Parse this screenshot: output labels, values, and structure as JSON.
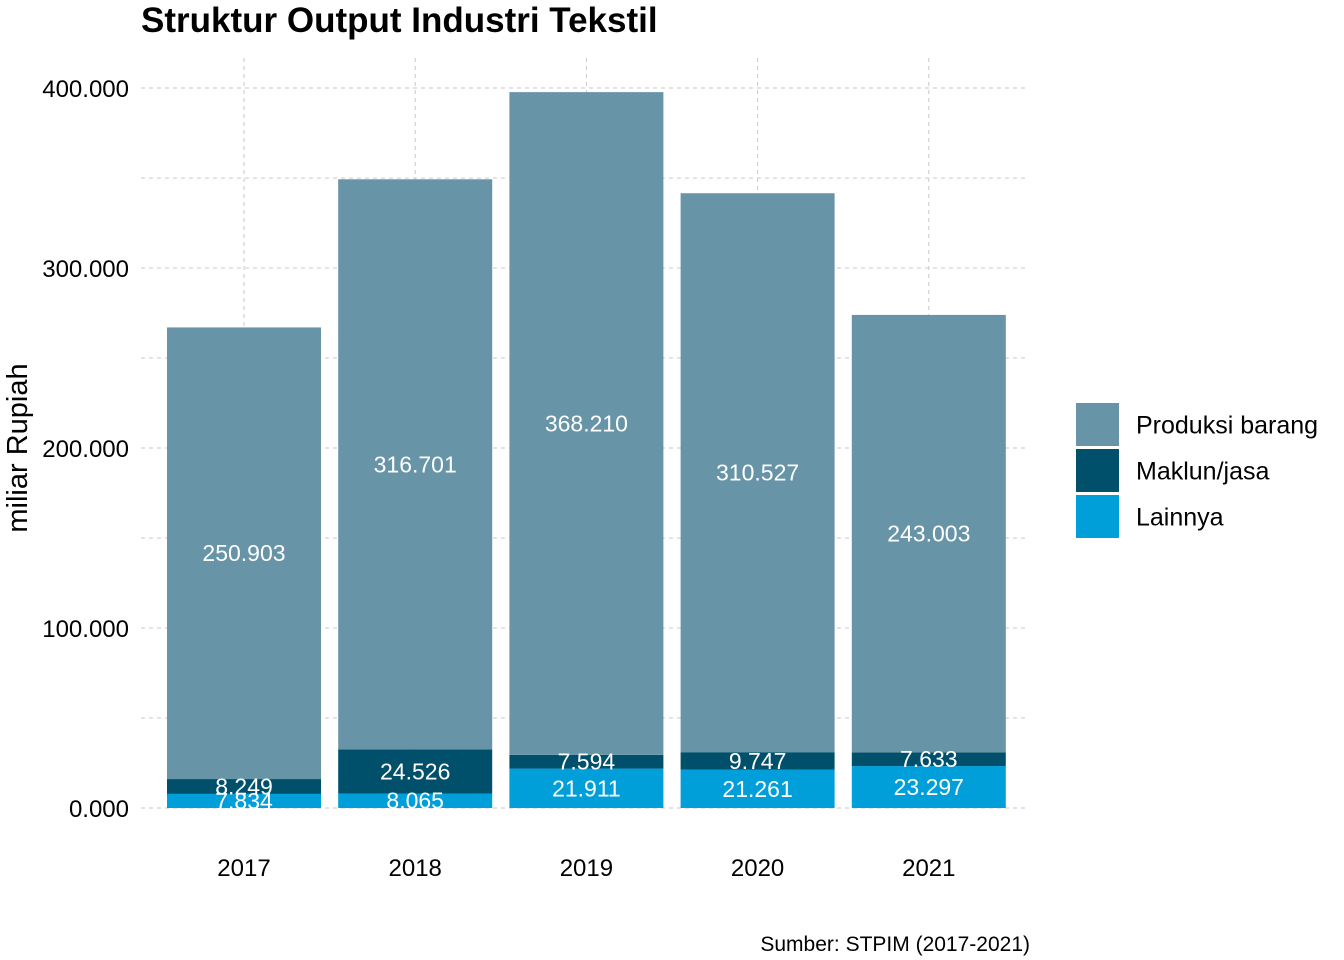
{
  "chart_data": {
    "type": "bar",
    "stacked": true,
    "title": "Struktur Output Industri Tekstil",
    "ylabel": "miliar Rupiah",
    "xlabel": "",
    "categories": [
      "2017",
      "2018",
      "2019",
      "2020",
      "2021"
    ],
    "series": [
      {
        "name": "Lainnya",
        "color": "#009fd9",
        "values": [
          7834,
          8065,
          21911,
          21261,
          23297
        ],
        "labels": [
          "7.834",
          "8.065",
          "21.911",
          "21.261",
          "23.297"
        ]
      },
      {
        "name": "Maklun/jasa",
        "color": "#004f6b",
        "values": [
          8249,
          24526,
          7594,
          9747,
          7633
        ],
        "labels": [
          "8.249",
          "24.526",
          "7.594",
          "9.747",
          "7.633"
        ]
      },
      {
        "name": "Produksi barang",
        "color": "#6794a7",
        "values": [
          250903,
          316701,
          368210,
          310527,
          243003
        ],
        "labels": [
          "250.903",
          "316.701",
          "368.210",
          "310.527",
          "243.003"
        ]
      }
    ],
    "legend_order": [
      "Produksi barang",
      "Maklun/jasa",
      "Lainnya"
    ],
    "yticks": [
      0,
      100000,
      200000,
      300000,
      400000
    ],
    "ytick_labels": [
      "0.000",
      "100.000",
      "200.000",
      "300.000",
      "400.000"
    ],
    "ylim": [
      0,
      400000
    ],
    "grid": true,
    "legend_position": "right"
  },
  "caption": "Sumber: STPIM (2017-2021)"
}
